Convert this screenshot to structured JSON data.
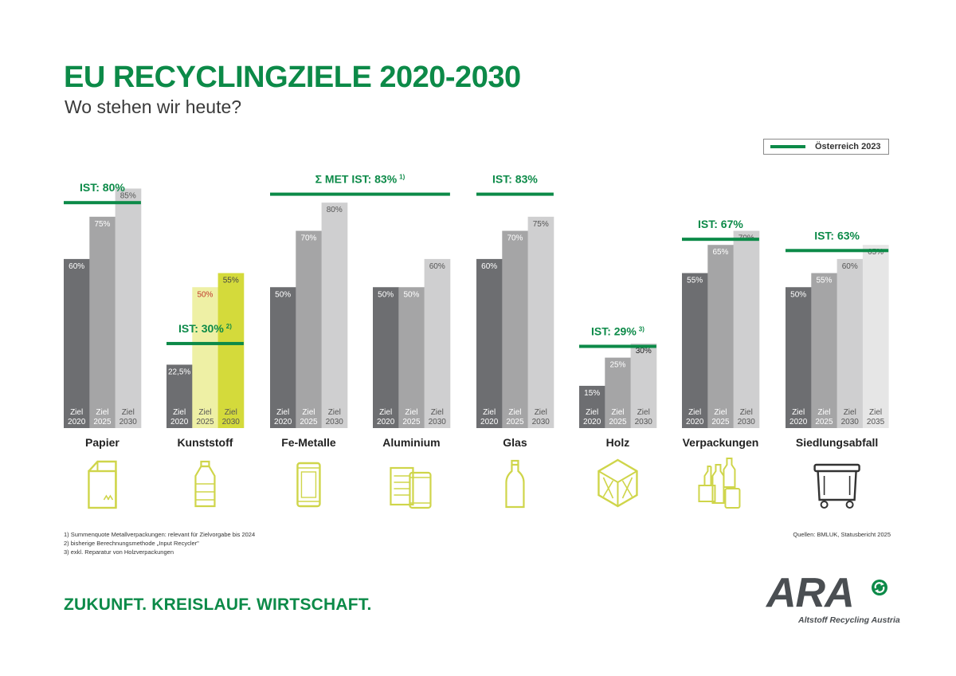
{
  "header": {
    "title": "EU RECYCLINGZIELE 2020-2030",
    "subtitle": "Wo stehen wir heute?"
  },
  "legend": {
    "label": "Österreich 2023",
    "color": "#0c8a48"
  },
  "colors": {
    "target2020": "#6d6e71",
    "target2025": "#a5a5a6",
    "target2030": "#cfcfd0",
    "target2035": "#e6e6e6",
    "plastic2025": "#eef0a5",
    "plastic2030": "#d4da3b",
    "actual": "#0c8a48",
    "plastic2025Label": "#c0392b",
    "icon": "#cfd54a"
  },
  "chart_data": {
    "type": "bar",
    "ylim": [
      0,
      100
    ],
    "unit": "%",
    "groups": [
      {
        "name": "Papier",
        "icon": "paper-box-icon",
        "actual": 80,
        "actual_label": "IST: 80%",
        "bars": [
          {
            "year": "2020",
            "value": 60,
            "label": "60%",
            "tick": "Ziel",
            "color": "target2020"
          },
          {
            "year": "2025",
            "value": 75,
            "label": "75%",
            "tick": "Ziel",
            "color": "target2025"
          },
          {
            "year": "2030",
            "value": 85,
            "label": "85%",
            "tick": "Ziel",
            "color": "target2030"
          }
        ]
      },
      {
        "name": "Kunststoff",
        "icon": "plastic-bottle-icon",
        "actual": 30,
        "actual_label": "IST: 30%",
        "footnote_ref": "2)",
        "bars": [
          {
            "year": "2020",
            "value": 22.5,
            "label": "22,5%",
            "tick": "Ziel",
            "color": "target2020"
          },
          {
            "year": "2025",
            "value": 50,
            "label": "50%",
            "tick": "Ziel",
            "color": "plastic2025"
          },
          {
            "year": "2030",
            "value": 55,
            "label": "55%",
            "tick": "Ziel",
            "color": "plastic2030"
          }
        ]
      },
      {
        "name": "Fe-Metalle",
        "icon": "metal-can-icon",
        "actual": 83,
        "actual_label": "Σ MET IST: 83%",
        "footnote_ref": "1)",
        "span": 2,
        "bars": [
          {
            "year": "2020",
            "value": 50,
            "label": "50%",
            "tick": "Ziel",
            "color": "target2020"
          },
          {
            "year": "2025",
            "value": 70,
            "label": "70%",
            "tick": "Ziel",
            "color": "target2025"
          },
          {
            "year": "2030",
            "value": 80,
            "label": "80%",
            "tick": "Ziel",
            "color": "target2030"
          }
        ]
      },
      {
        "name": "Aluminium",
        "icon": "aluminium-cans-icon",
        "bars": [
          {
            "year": "2020",
            "value": 50,
            "label": "50%",
            "tick": "Ziel",
            "color": "target2020"
          },
          {
            "year": "2025",
            "value": 50,
            "label": "50%",
            "tick": "Ziel",
            "color": "target2025"
          },
          {
            "year": "2030",
            "value": 60,
            "label": "60%",
            "tick": "Ziel",
            "color": "target2030"
          }
        ]
      },
      {
        "name": "Glas",
        "icon": "glass-bottle-icon",
        "actual": 83,
        "actual_label": "IST: 83%",
        "bars": [
          {
            "year": "2020",
            "value": 60,
            "label": "60%",
            "tick": "Ziel",
            "color": "target2020"
          },
          {
            "year": "2025",
            "value": 70,
            "label": "70%",
            "tick": "Ziel",
            "color": "target2025"
          },
          {
            "year": "2030",
            "value": 75,
            "label": "75%",
            "tick": "Ziel",
            "color": "target2030"
          }
        ]
      },
      {
        "name": "Holz",
        "icon": "wooden-crate-icon",
        "actual": 29,
        "actual_label": "IST: 29%",
        "footnote_ref": "3)",
        "bars": [
          {
            "year": "2020",
            "value": 15,
            "label": "15%",
            "tick": "Ziel",
            "color": "target2020"
          },
          {
            "year": "2025",
            "value": 25,
            "label": "25%",
            "tick": "Ziel",
            "color": "target2025"
          },
          {
            "year": "2030",
            "value": 30,
            "label": "30%",
            "tick": "Ziel",
            "color": "target2030"
          }
        ]
      },
      {
        "name": "Verpackungen",
        "icon": "packaging-mix-icon",
        "actual": 67,
        "actual_label": "IST: 67%",
        "bars": [
          {
            "year": "2020",
            "value": 55,
            "label": "55%",
            "tick": "Ziel",
            "color": "target2020"
          },
          {
            "year": "2025",
            "value": 65,
            "label": "65%",
            "tick": "Ziel",
            "color": "target2025"
          },
          {
            "year": "2030",
            "value": 70,
            "label": "70%",
            "tick": "Ziel",
            "color": "target2030"
          }
        ]
      },
      {
        "name": "Siedlungsabfall",
        "icon": "waste-bin-icon",
        "actual": 63,
        "actual_label": "IST: 63%",
        "bars": [
          {
            "year": "2020",
            "value": 50,
            "label": "50%",
            "tick": "Ziel",
            "color": "target2020"
          },
          {
            "year": "2025",
            "value": 55,
            "label": "55%",
            "tick": "Ziel",
            "color": "target2025"
          },
          {
            "year": "2030",
            "value": 60,
            "label": "60%",
            "tick": "Ziel",
            "color": "target2030"
          },
          {
            "year": "2035",
            "value": 65,
            "label": "65%",
            "tick": "Ziel",
            "color": "target2035"
          }
        ]
      }
    ]
  },
  "footnotes": [
    "1) Summenquote Metallverpackungen: relevant für Zielvorgabe bis 2024",
    "2) bisherige Berechnungsmethode „Input Recycler\"",
    "3) exkl. Reparatur von Holzverpackungen"
  ],
  "sources": "Quellen: BMLUK, Statusbericht 2025",
  "slogan": "ZUKUNFT. KREISLAUF. WIRTSCHAFT.",
  "logo": {
    "wordmark": "ARA",
    "tagline": "Altstoff Recycling Austria"
  }
}
